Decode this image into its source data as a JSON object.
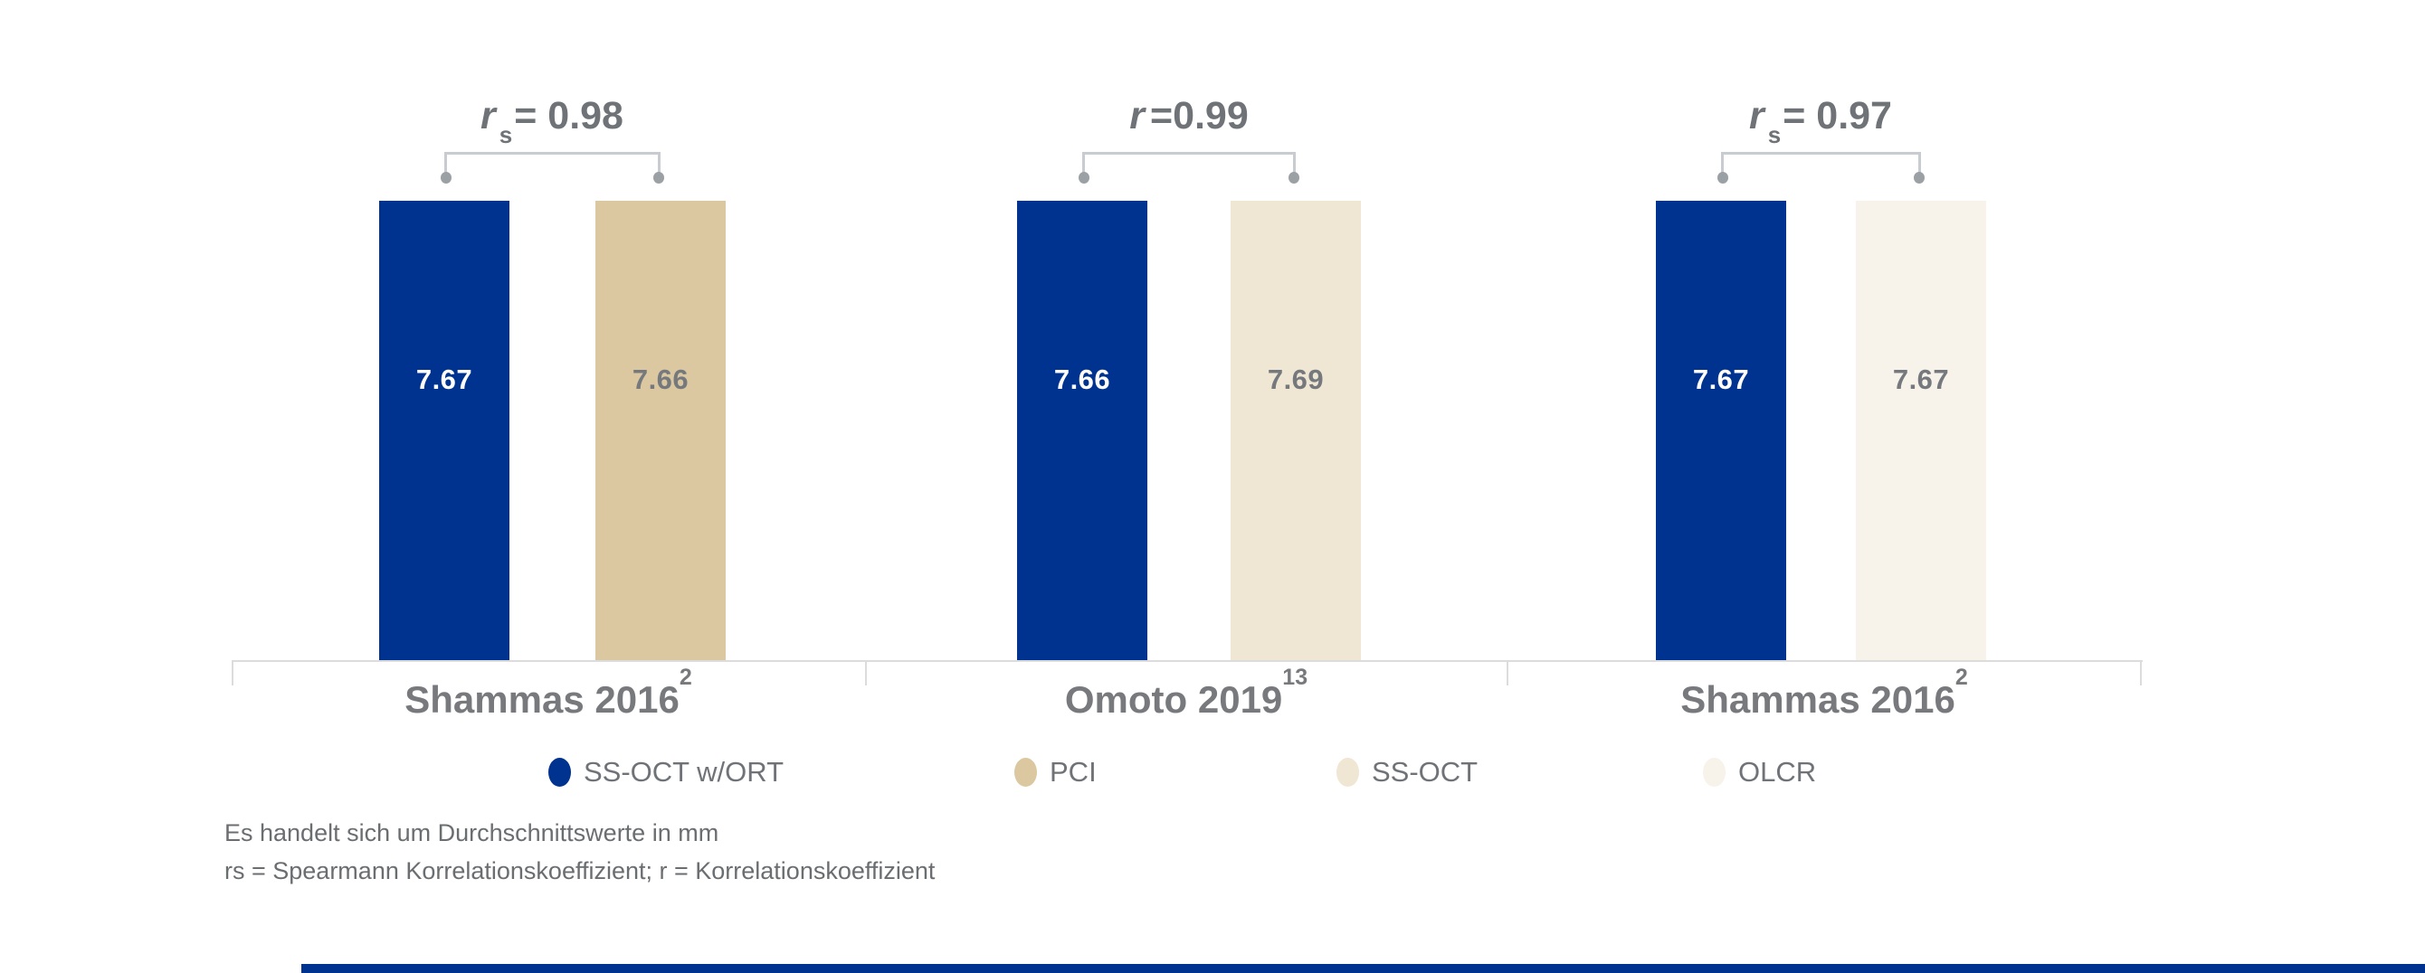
{
  "chart_data": {
    "type": "bar",
    "unit": "mm",
    "grid": false,
    "y_axis_visible": false,
    "value_labels_visible": true,
    "legend_position": "bottom",
    "categories": [
      "Shammas 2016²",
      "Omoto 2019¹³",
      "Shammas 2016²"
    ],
    "groups": [
      {
        "category": "Shammas 2016",
        "category_sup": "2",
        "correlation": {
          "symbol": "r",
          "sub": "s",
          "text": "= 0.98",
          "value": 0.98,
          "kind": "Spearman"
        },
        "bars": [
          {
            "series": "SS-OCT w/ORT",
            "value": 7.67,
            "label": "7.67",
            "color": "#00338F",
            "label_color": "#FFFFFF"
          },
          {
            "series": "PCI",
            "value": 7.66,
            "label": "7.66",
            "color": "#DCC8A0",
            "label_color": "#75797D"
          }
        ]
      },
      {
        "category": "Omoto 2019",
        "category_sup": "13",
        "correlation": {
          "symbol": "r",
          "sub": "",
          "text": "=0.99",
          "value": 0.99,
          "kind": "Pearson"
        },
        "bars": [
          {
            "series": "SS-OCT w/ORT",
            "value": 7.66,
            "label": "7.66",
            "color": "#00338F",
            "label_color": "#FFFFFF"
          },
          {
            "series": "SS-OCT",
            "value": 7.69,
            "label": "7.69",
            "color": "#F0E6D4",
            "label_color": "#75797D"
          }
        ]
      },
      {
        "category": "Shammas 2016",
        "category_sup": "2",
        "correlation": {
          "symbol": "r",
          "sub": "s",
          "text": "= 0.97",
          "value": 0.97,
          "kind": "Spearman"
        },
        "bars": [
          {
            "series": "SS-OCT w/ORT",
            "value": 7.67,
            "label": "7.67",
            "color": "#00338F",
            "label_color": "#FFFFFF"
          },
          {
            "series": "OLCR",
            "value": 7.67,
            "label": "7.67",
            "color": "#F7F2EA",
            "label_color": "#75797D"
          }
        ]
      }
    ],
    "legend": [
      {
        "label": "SS-OCT w/ORT",
        "color": "#00338F"
      },
      {
        "label": "PCI",
        "color": "#DCC8A0"
      },
      {
        "label": "SS-OCT",
        "color": "#F0E6D4"
      },
      {
        "label": "OLCR",
        "color": "#F7F2EA"
      }
    ],
    "footnotes": [
      "Es handelt sich um Durchschnittswerte in mm",
      "rs = Spearmann Korrelationskoeffizient; r = Korrelationskoeffizient"
    ],
    "accent_color": "#00338F"
  }
}
